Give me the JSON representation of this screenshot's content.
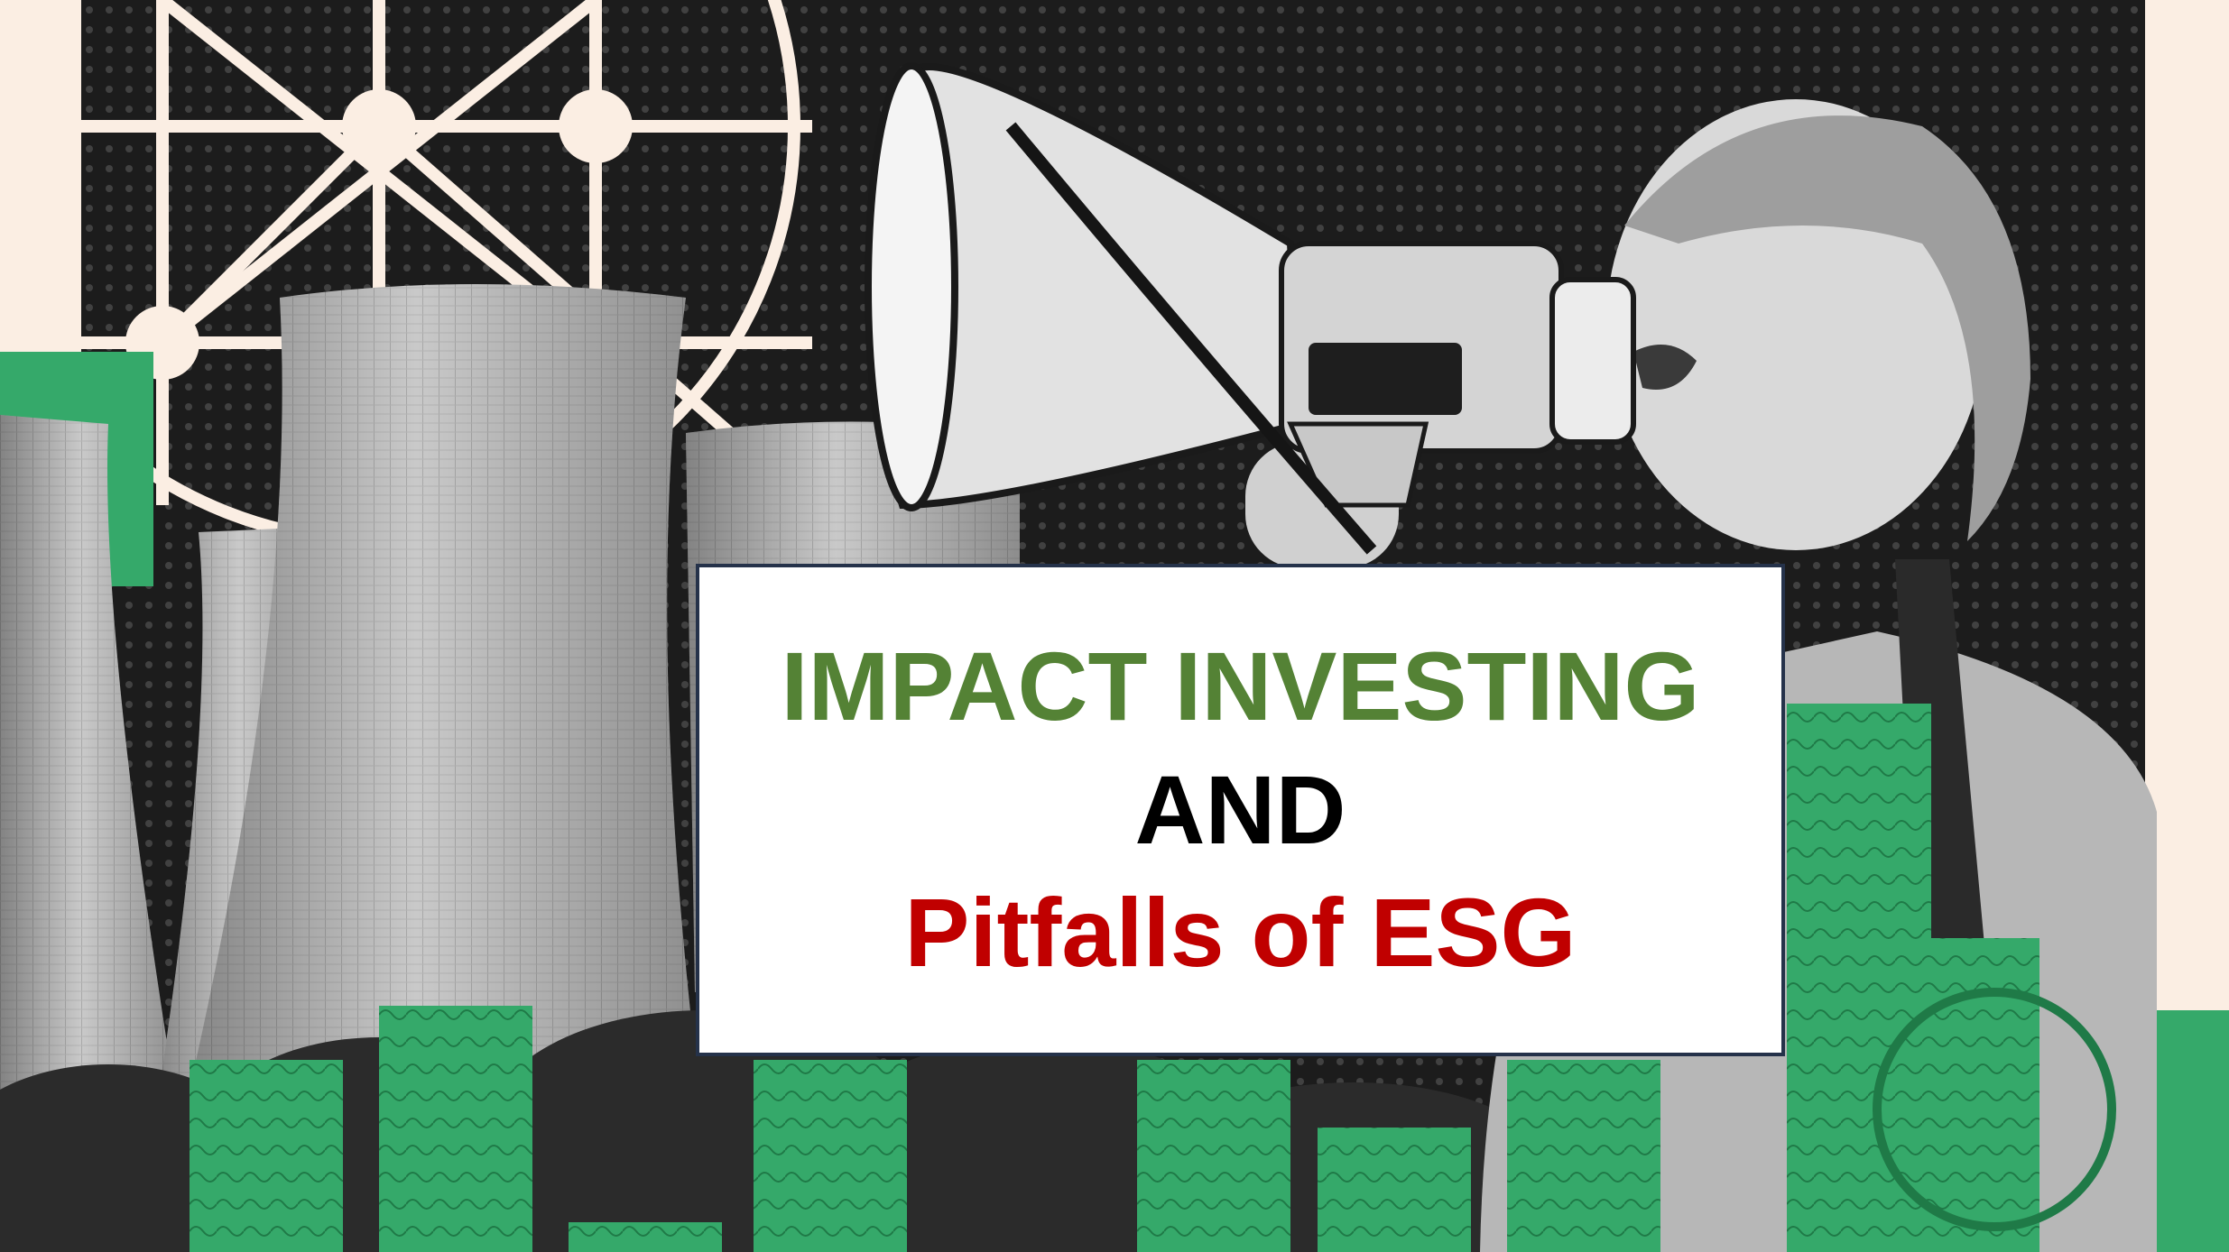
{
  "title": {
    "line1": "IMPACT INVESTING",
    "line2": "AND",
    "line3": "Pitfalls of ESG"
  },
  "colors": {
    "line1": "#548235",
    "line2": "#000000",
    "line3": "#c00000",
    "box_border": "#25324a",
    "background_dark": "#1c1c1c",
    "accent_green": "#35a96a",
    "cream": "#fbeee3"
  },
  "image": {
    "elements": [
      "cooling-towers",
      "megaphone",
      "protester",
      "dollar-bill-bars",
      "network-globe"
    ]
  }
}
